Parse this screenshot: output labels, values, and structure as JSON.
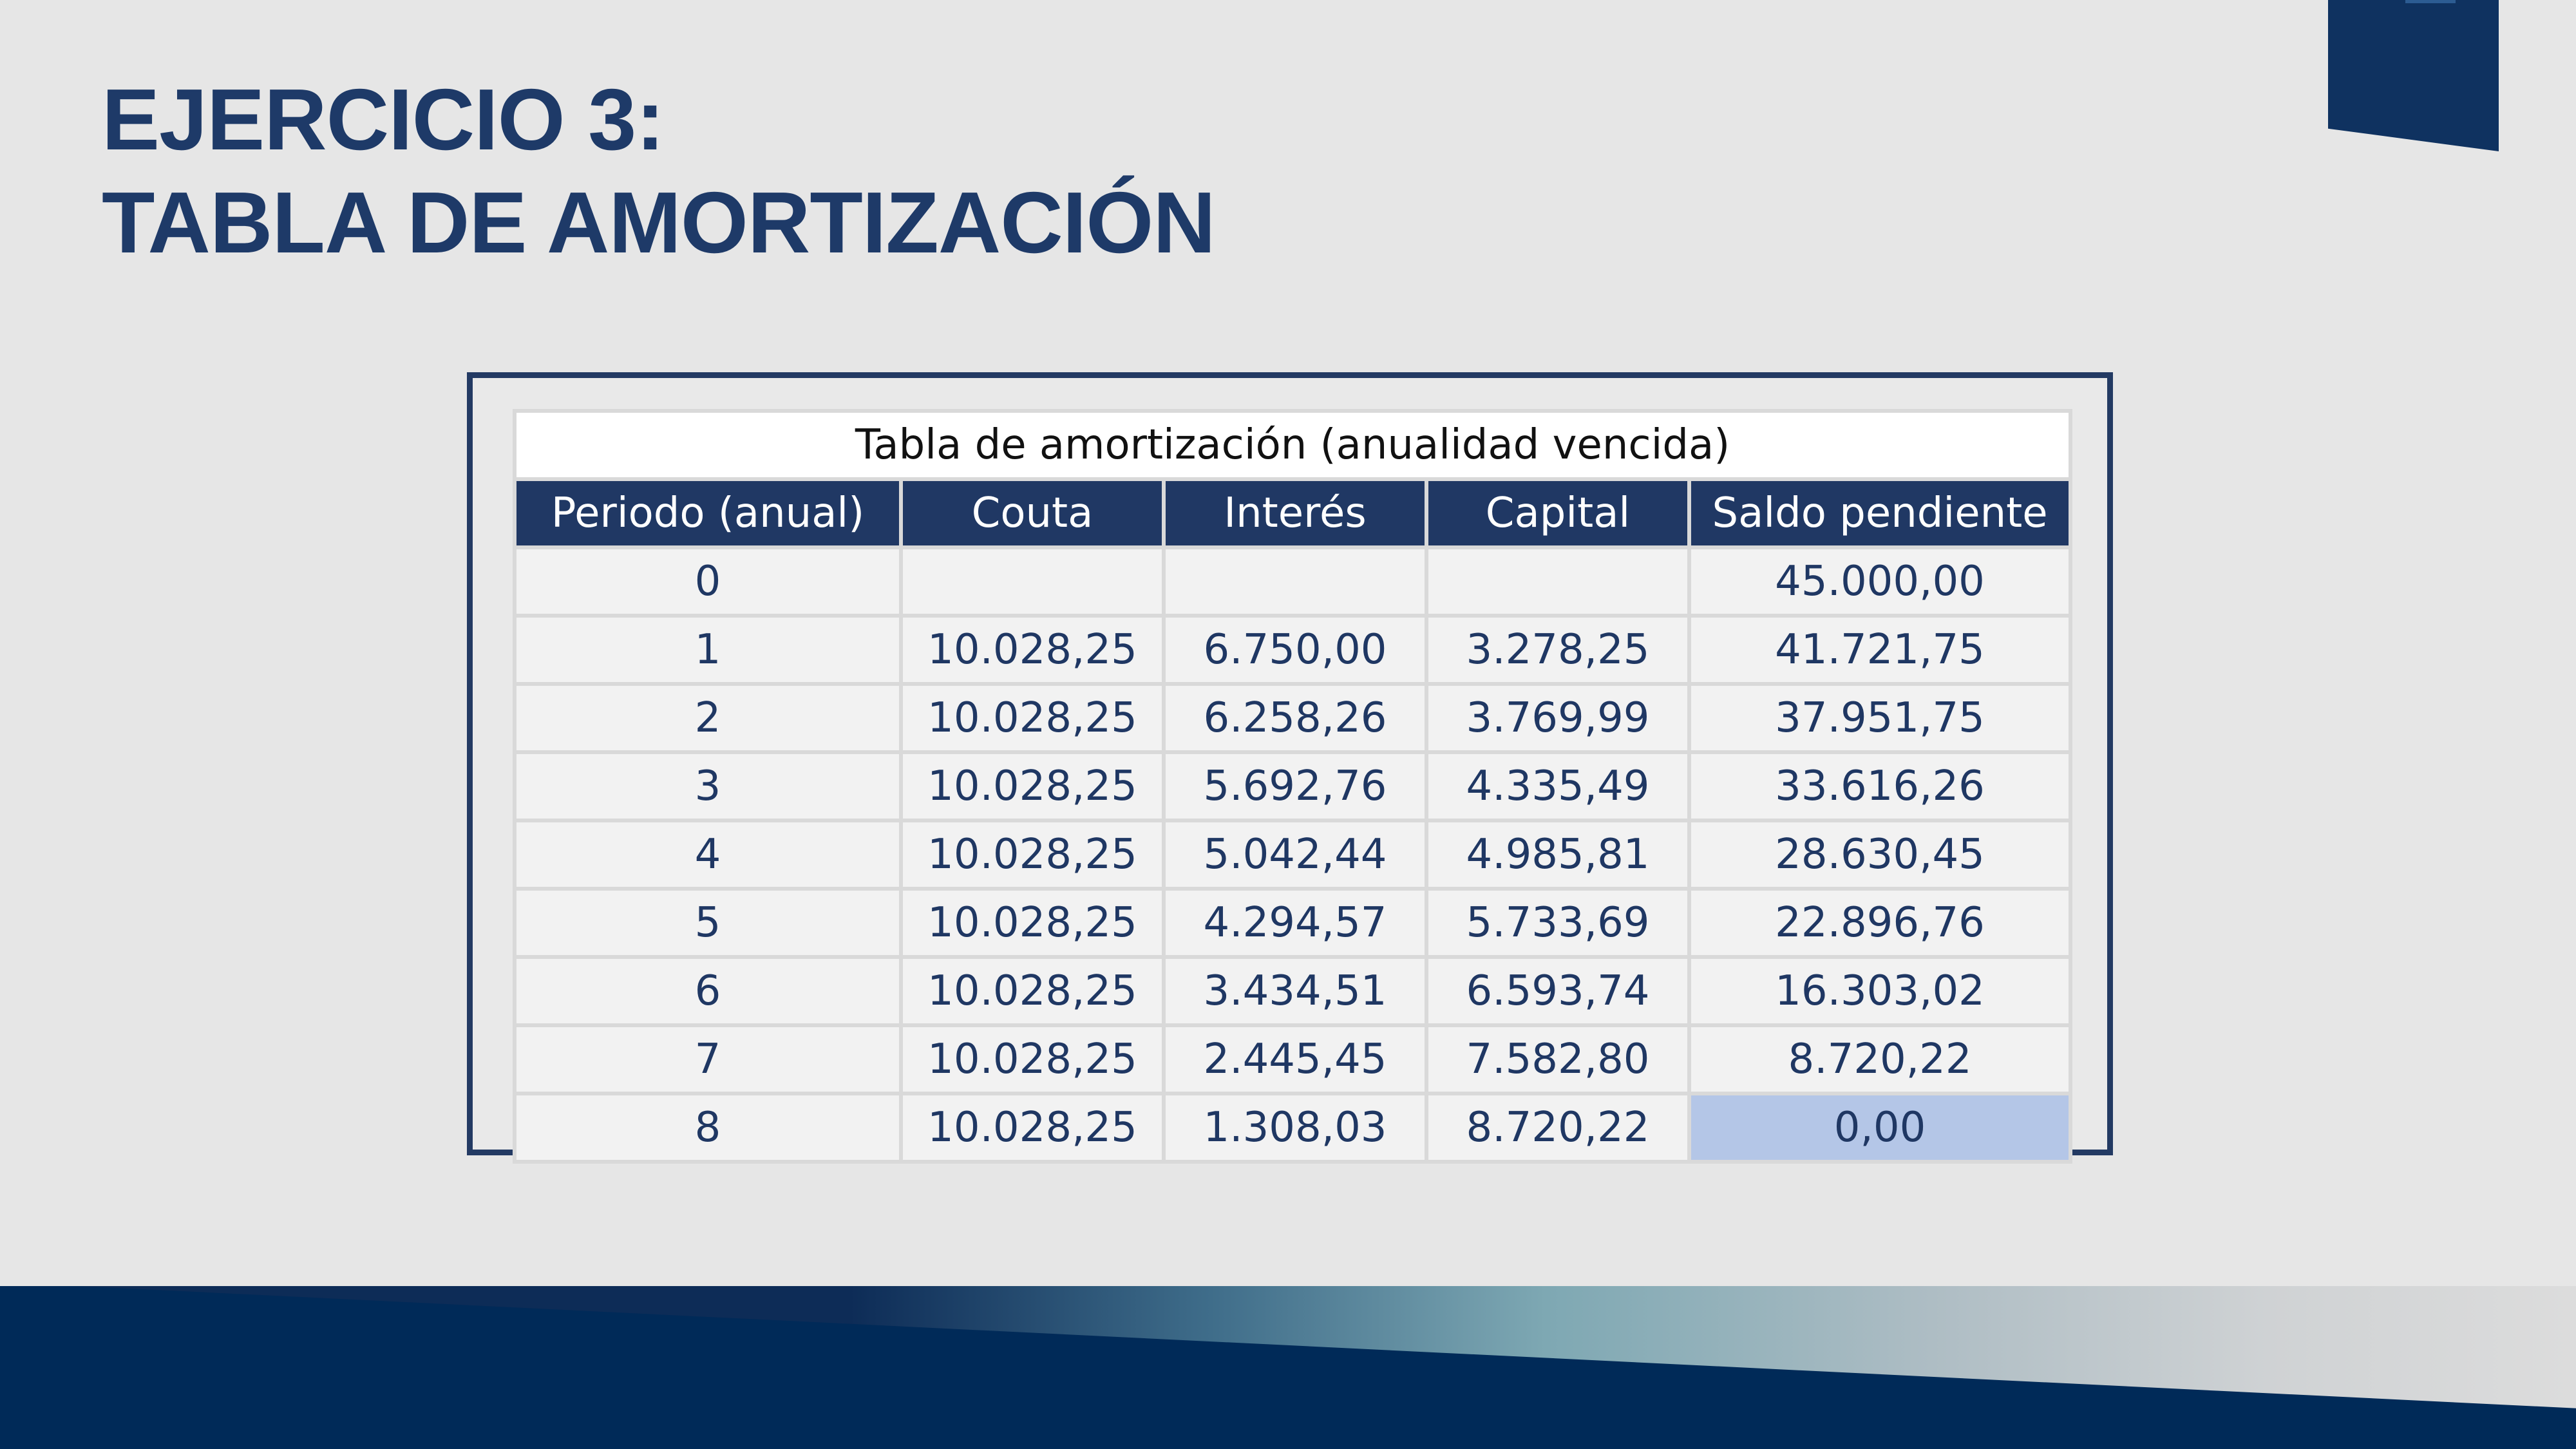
{
  "slide": {
    "title_line1": "EJERCICIO 3:",
    "title_line2": "TABLA DE AMORTIZACIÓN",
    "colors": {
      "title": "#1e3a68",
      "header_fill": "#203864",
      "frame": "#233a63",
      "highlight_cell": "#b4c6e7",
      "band_dark": "#002a58"
    }
  },
  "table": {
    "caption": "Tabla de amortización (anualidad vencida)",
    "headers": [
      "Periodo (anual)",
      "Couta",
      "Interés",
      "Capital",
      "Saldo pendiente"
    ],
    "rows": [
      [
        "0",
        "",
        "",
        "",
        "45.000,00"
      ],
      [
        "1",
        "10.028,25",
        "6.750,00",
        "3.278,25",
        "41.721,75"
      ],
      [
        "2",
        "10.028,25",
        "6.258,26",
        "3.769,99",
        "37.951,75"
      ],
      [
        "3",
        "10.028,25",
        "5.692,76",
        "4.335,49",
        "33.616,26"
      ],
      [
        "4",
        "10.028,25",
        "5.042,44",
        "4.985,81",
        "28.630,45"
      ],
      [
        "5",
        "10.028,25",
        "4.294,57",
        "5.733,69",
        "22.896,76"
      ],
      [
        "6",
        "10.028,25",
        "3.434,51",
        "6.593,74",
        "16.303,02"
      ],
      [
        "7",
        "10.028,25",
        "2.445,45",
        "7.582,80",
        "8.720,22"
      ],
      [
        "8",
        "10.028,25",
        "1.308,03",
        "8.720,22",
        "0,00"
      ]
    ]
  }
}
